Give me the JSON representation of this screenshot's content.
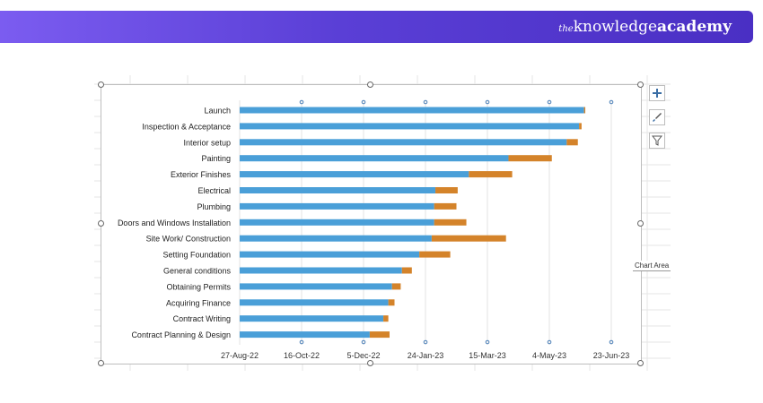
{
  "header": {
    "brand_prefix": "the",
    "brand_mid": "knowledge",
    "brand_bold": "academy"
  },
  "chart_area_tooltip": "Chart Area",
  "toolbar": {
    "add_icon": "plus-icon",
    "style_icon": "brush-icon",
    "filter_icon": "filter-icon"
  },
  "colors": {
    "primary": "#4a9fd8",
    "secondary": "#d4832a",
    "banner": "#5a3fd6"
  },
  "chart_data": {
    "type": "bar",
    "orientation": "horizontal",
    "stacked": true,
    "x_axis_type": "date",
    "xlim": [
      "2022-08-27",
      "2023-06-23"
    ],
    "x_ticks": [
      "27-Aug-22",
      "16-Oct-22",
      "5-Dec-22",
      "24-Jan-23",
      "15-Mar-23",
      "4-May-23",
      "23-Jun-23"
    ],
    "grid": true,
    "legend": "none",
    "title": "",
    "categories": [
      "Launch",
      "Inspection & Acceptance",
      "Interior setup",
      "Painting",
      "Exterior Finishes",
      "Electrical",
      "Plumbing",
      "Doors and Windows Installation",
      "Site Work/ Construction",
      "Setting Foundation",
      "General conditions",
      "Obtaining Permits",
      "Acquiring Finance",
      "Contract Writing",
      "Contract Planning & Design"
    ],
    "series": [
      {
        "start": [
          "2023-06-01",
          "2023-05-28",
          "2023-05-18",
          "2023-04-01",
          "2023-02-28",
          "2023-02-01",
          "2023-01-31",
          "2023-01-31",
          "2023-01-29",
          "2023-01-19",
          "2023-01-05",
          "2022-12-28",
          "2022-12-25",
          "2022-12-21",
          "2022-12-10"
        ]
      },
      {
        "duration_days": [
          1,
          2,
          9,
          35,
          35,
          18,
          18,
          26,
          60,
          25,
          8,
          7,
          5,
          4,
          16
        ]
      }
    ]
  }
}
